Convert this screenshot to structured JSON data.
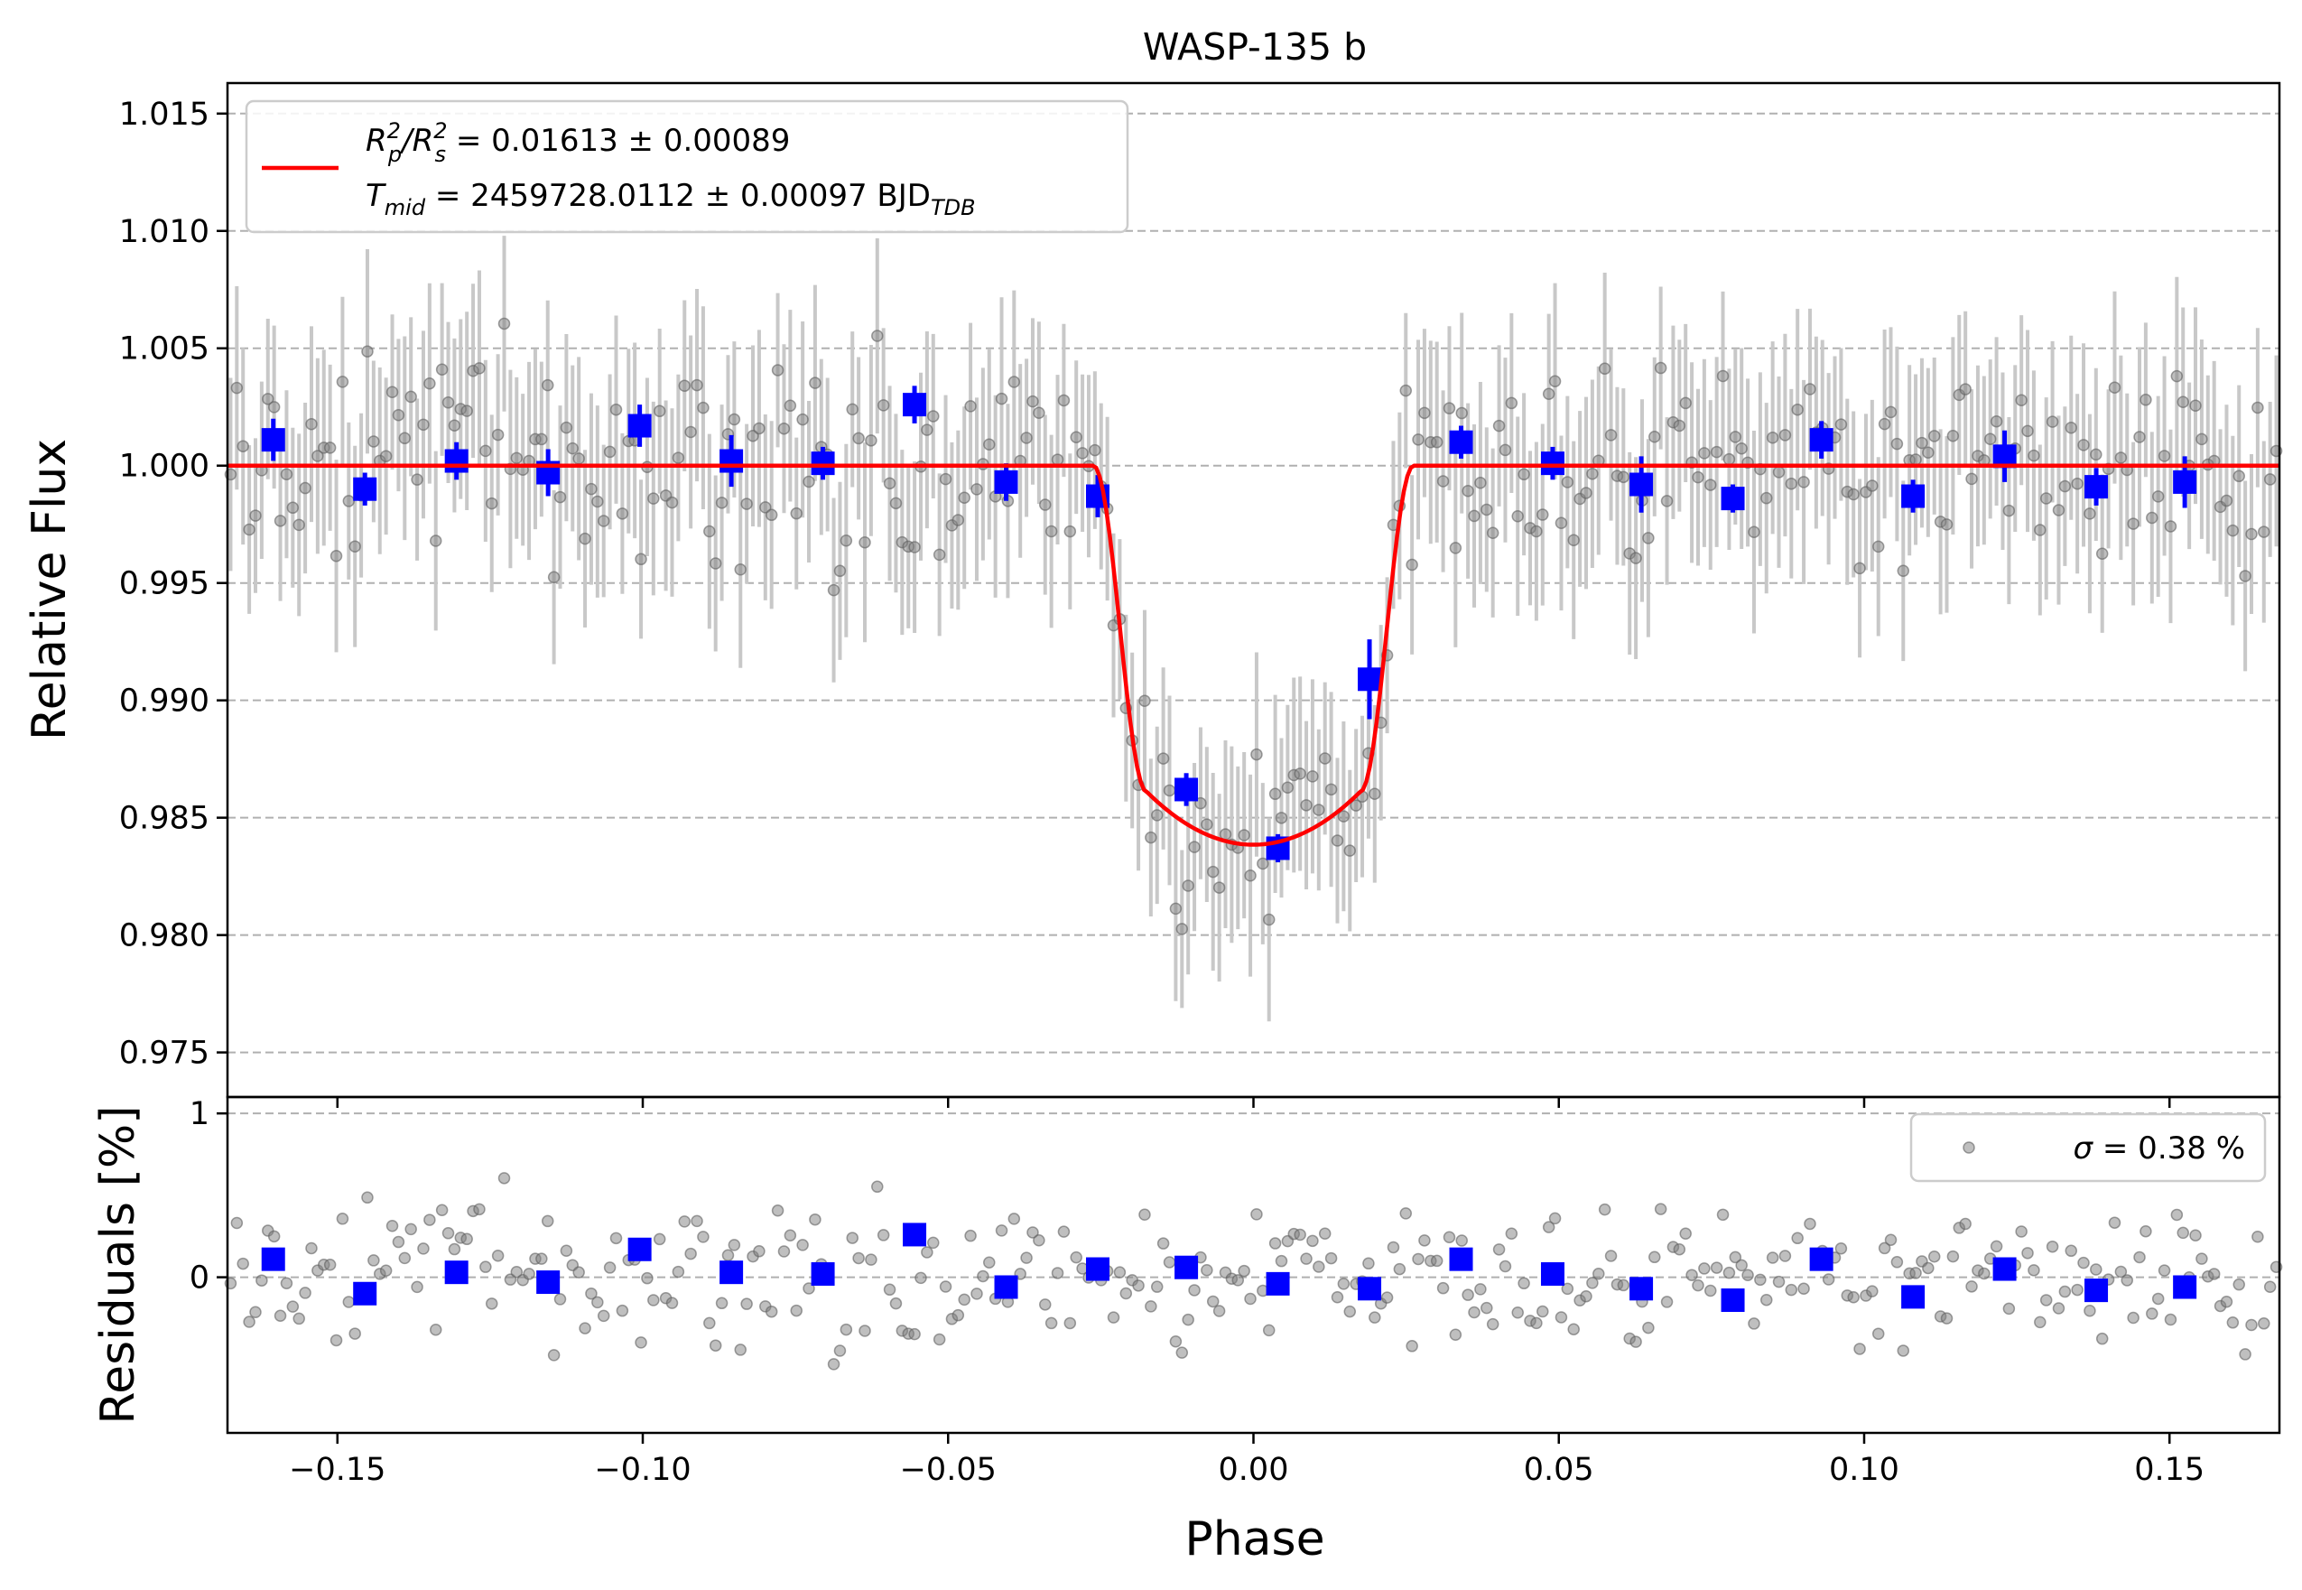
{
  "chart_data": [
    {
      "type": "scatter",
      "panel": "light-curve",
      "title": "WASP-135 b",
      "xlabel": "",
      "ylabel": "Relative Flux",
      "xlim": [
        -0.168,
        0.168
      ],
      "ylim": [
        0.9731,
        1.0163
      ],
      "x_ticks": [
        -0.15,
        -0.1,
        -0.05,
        0.0,
        0.05,
        0.1,
        0.15
      ],
      "x_tick_labels": [
        "−0.15",
        "−0.10",
        "−0.05",
        "0.00",
        "0.05",
        "0.10",
        "0.15"
      ],
      "y_ticks": [
        0.975,
        0.98,
        0.985,
        0.99,
        0.995,
        1.0,
        1.005,
        1.01,
        1.015
      ],
      "y_tick_labels": [
        "0.975",
        "0.980",
        "0.985",
        "0.990",
        "0.995",
        "1.000",
        "1.005",
        "1.010",
        "1.015"
      ],
      "grid": "horizontal dashed",
      "legend_placement": "upper-left",
      "legend": {
        "line1_prefix": "R",
        "line1_sub_p": "p",
        "line1_sup": "2",
        "line1_slash": "/R",
        "line1_sub_s": "s",
        "line1_value": " = 0.01613 ± 0.00089",
        "line2_prefix": "T",
        "line2_sub": "mid",
        "line2_value": " = 2459728.0112 ± 0.00097 BJD",
        "line2_unit_sub": "TDB"
      },
      "model": {
        "color": "#ff0000",
        "baseline": 1.0,
        "depth_min": 0.98385,
        "ingress_start": -0.0262,
        "ingress_end": -0.0175,
        "egress_start": 0.0175,
        "egress_end": 0.0262
      },
      "binned": {
        "color": "#0000ff",
        "x": [
          -0.1605,
          -0.1455,
          -0.1305,
          -0.1155,
          -0.1005,
          -0.0855,
          -0.0705,
          -0.0555,
          -0.0405,
          -0.0255,
          -0.011,
          0.004,
          0.019,
          0.034,
          0.049,
          0.0635,
          0.0785,
          0.093,
          0.108,
          0.123,
          0.138,
          0.1525
        ],
        "y": [
          1.0011,
          0.999,
          1.0002,
          0.9997,
          1.0017,
          1.0002,
          1.0001,
          1.0026,
          0.9993,
          0.9987,
          0.9862,
          0.9837,
          0.9909,
          1.001,
          1.0001,
          0.9992,
          0.9986,
          1.0011,
          0.9987,
          1.0004,
          0.9991,
          0.9993
        ],
        "err": [
          0.0009,
          0.0007,
          0.0008,
          0.001,
          0.0009,
          0.0011,
          0.0007,
          0.0008,
          0.0008,
          0.0009,
          0.0007,
          0.0006,
          0.0017,
          0.0007,
          0.0007,
          0.0012,
          0.0006,
          0.0008,
          0.0007,
          0.0011,
          0.0008,
          0.0011
        ]
      },
      "raw_points": {
        "color": "#808080",
        "errorbar_color": "#c8c8c8",
        "typical_err": 0.0038,
        "n_points": 330
      }
    },
    {
      "type": "scatter",
      "panel": "residuals",
      "xlabel": "Phase",
      "ylabel": "Residuals [%]",
      "xlim": [
        -0.168,
        0.168
      ],
      "ylim": [
        -0.95,
        1.1
      ],
      "y_ticks": [
        0,
        1
      ],
      "y_tick_labels": [
        "0",
        "1"
      ],
      "grid": "horizontal dashed",
      "legend_placement": "upper-right",
      "legend": {
        "sigma_symbol": "σ",
        "sigma_text": " = 0.38 %"
      },
      "sigma_percent": 0.38,
      "binned": {
        "color": "#0000ff",
        "y": [
          0.11,
          -0.1,
          0.03,
          -0.03,
          0.17,
          0.03,
          0.02,
          0.26,
          -0.06,
          0.05,
          0.06,
          -0.04,
          -0.07,
          0.11,
          0.02,
          -0.07,
          -0.14,
          0.11,
          -0.12,
          0.05,
          -0.08,
          -0.06
        ]
      }
    }
  ]
}
